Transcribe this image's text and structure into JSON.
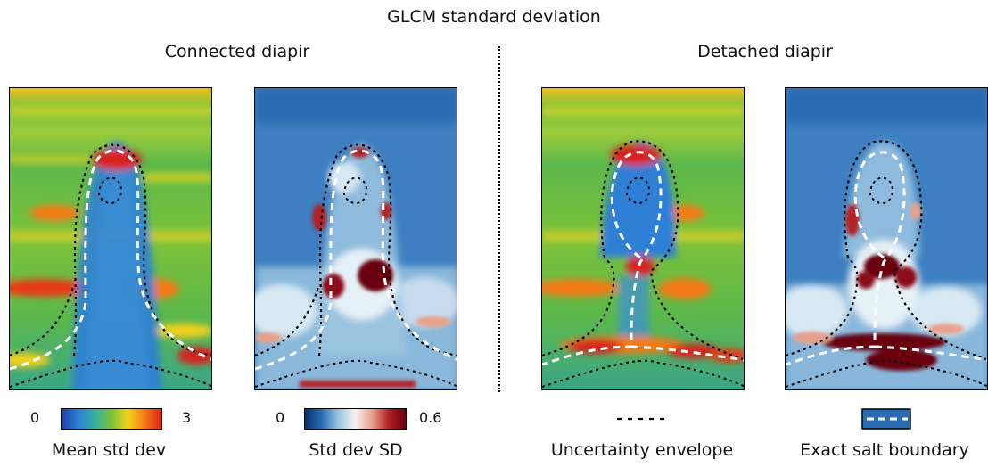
{
  "title": "GLCM standard deviation",
  "groups": {
    "connected": "Connected diapir",
    "detached": "Detached diapir"
  },
  "legend": {
    "mean": {
      "min": "0",
      "max": "3",
      "label": "Mean std dev",
      "colormap": [
        "#1c3fa6",
        "#2e7fd6",
        "#33b0a0",
        "#7cc23a",
        "#f2d21a",
        "#f47a16",
        "#d8241d"
      ]
    },
    "sd": {
      "min": "0",
      "max": "0.6",
      "label": "Std dev SD",
      "colormap": [
        "#08306b",
        "#2a6cb3",
        "#9cc6e2",
        "#f6f2ef",
        "#e8a08a",
        "#b22026",
        "#67000d"
      ]
    },
    "envelope": {
      "label": "Uncertainty envelope"
    },
    "boundary": {
      "label": "Exact salt boundary"
    }
  }
}
